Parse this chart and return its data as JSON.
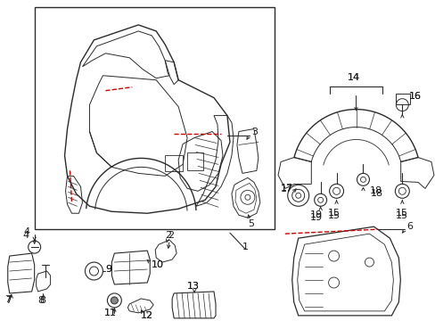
{
  "bg_color": "#ffffff",
  "line_color": "#2a2a2a",
  "red_color": "#cc0000",
  "text_color": "#1a1a1a",
  "figsize": [
    4.89,
    3.6
  ],
  "dpi": 100
}
